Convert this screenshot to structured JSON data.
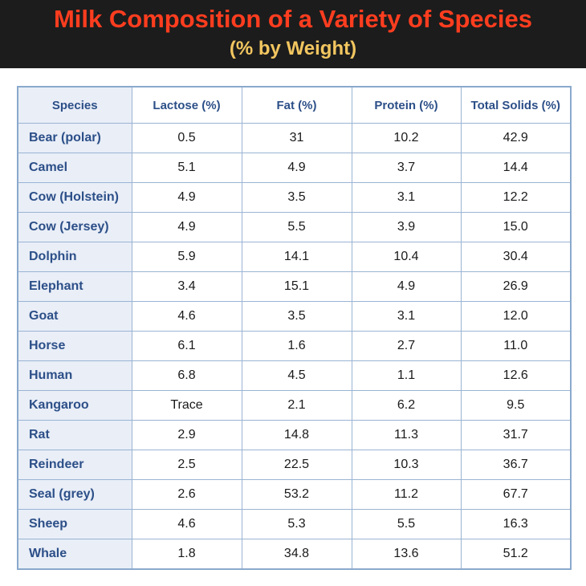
{
  "header": {
    "title": "Milk Composition of a Variety of Species",
    "subtitle": "(% by Weight)"
  },
  "colors": {
    "title": "#ff3d1f",
    "subtitle": "#f2c660",
    "header_bg": "#1c1c1c",
    "species_bg": "#e9eef7",
    "header_text": "#2c4f88",
    "border": "#9ab4d3"
  },
  "table": {
    "columns": [
      "Species",
      "Lactose (%)",
      "Fat (%)",
      "Protein (%)",
      "Total Solids (%)"
    ],
    "rows": [
      [
        "Bear (polar)",
        "0.5",
        "31",
        "10.2",
        "42.9"
      ],
      [
        "Camel",
        "5.1",
        "4.9",
        "3.7",
        "14.4"
      ],
      [
        "Cow (Holstein)",
        "4.9",
        "3.5",
        "3.1",
        "12.2"
      ],
      [
        "Cow (Jersey)",
        "4.9",
        "5.5",
        "3.9",
        "15.0"
      ],
      [
        "Dolphin",
        "5.9",
        "14.1",
        "10.4",
        "30.4"
      ],
      [
        "Elephant",
        "3.4",
        "15.1",
        "4.9",
        "26.9"
      ],
      [
        "Goat",
        "4.6",
        "3.5",
        "3.1",
        "12.0"
      ],
      [
        "Horse",
        "6.1",
        "1.6",
        "2.7",
        "11.0"
      ],
      [
        "Human",
        "6.8",
        "4.5",
        "1.1",
        "12.6"
      ],
      [
        "Kangaroo",
        "Trace",
        "2.1",
        "6.2",
        "9.5"
      ],
      [
        "Rat",
        "2.9",
        "14.8",
        "11.3",
        "31.7"
      ],
      [
        "Reindeer",
        "2.5",
        "22.5",
        "10.3",
        "36.7"
      ],
      [
        "Seal (grey)",
        "2.6",
        "53.2",
        "11.2",
        "67.7"
      ],
      [
        "Sheep",
        "4.6",
        "5.3",
        "5.5",
        "16.3"
      ],
      [
        "Whale",
        "1.8",
        "34.8",
        "13.6",
        "51.2"
      ]
    ]
  }
}
